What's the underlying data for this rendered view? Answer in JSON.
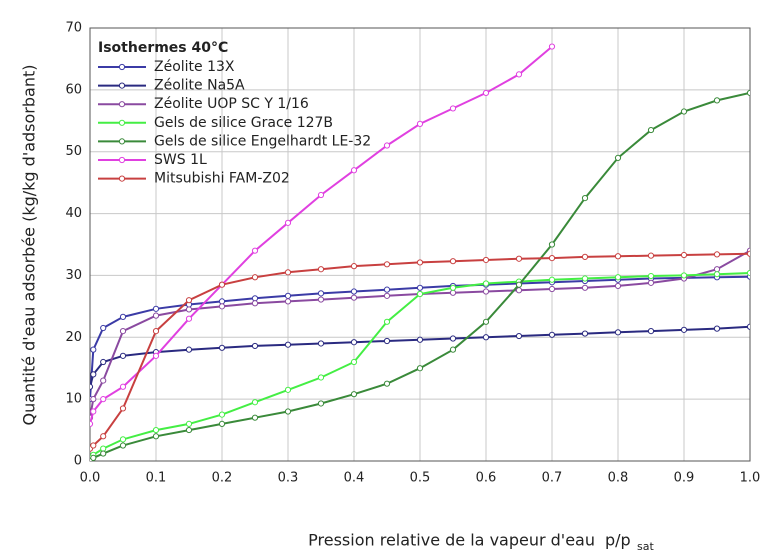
{
  "chart_data": {
    "type": "line",
    "legend_title": "Isothermes 40°C",
    "ylabel": "Quantité d'eau adsorbée (kg/kg d'adsorbant)",
    "xlabel": {
      "text": "Pression relative de la vapeur d'eau",
      "symbol": "p/p",
      "subscript": "sat"
    },
    "x": [
      0,
      0.005,
      0.02,
      0.05,
      0.1,
      0.15,
      0.2,
      0.25,
      0.3,
      0.35,
      0.4,
      0.45,
      0.5,
      0.55,
      0.6,
      0.65,
      0.7,
      0.75,
      0.8,
      0.85,
      0.9,
      0.95,
      1.0
    ],
    "xlim": [
      0,
      1
    ],
    "ylim": [
      0,
      70
    ],
    "xticks": [
      {
        "value": 0,
        "label": "0.0"
      },
      0.1,
      0.2,
      0.3,
      0.4,
      0.5,
      0.6,
      0.7,
      0.8,
      0.9,
      {
        "value": 1,
        "label": "1.0"
      }
    ],
    "yticks": [
      0,
      10,
      20,
      30,
      40,
      50,
      60,
      70
    ],
    "grid": true,
    "legend": "upper left",
    "series": [
      {
        "name": "Zéolite 13X",
        "color": "#3b3ba6",
        "values": [
          10,
          18,
          21.5,
          23.3,
          24.6,
          25.3,
          25.8,
          26.3,
          26.7,
          27.1,
          27.4,
          27.7,
          28,
          28.3,
          28.5,
          28.7,
          28.9,
          29.1,
          29.3,
          29.5,
          29.6,
          29.7,
          29.8
        ]
      },
      {
        "name": "Zéolite Na5A",
        "color": "#2a2a80",
        "values": [
          12,
          14,
          16,
          17,
          17.6,
          18,
          18.3,
          18.6,
          18.8,
          19,
          19.2,
          19.4,
          19.6,
          19.8,
          20,
          20.2,
          20.4,
          20.6,
          20.8,
          21,
          21.2,
          21.4,
          21.7
        ]
      },
      {
        "name": "Zéolite UOP SC Y 1/16",
        "color": "#8a4aa0",
        "values": [
          7,
          10,
          13,
          21,
          23.5,
          24.5,
          25,
          25.5,
          25.8,
          26.1,
          26.4,
          26.7,
          27,
          27.2,
          27.4,
          27.6,
          27.8,
          28,
          28.3,
          28.8,
          29.5,
          31,
          34
        ]
      },
      {
        "name": "Gels de silice Grace 127B",
        "color": "#44ee44",
        "values": [
          0.5,
          1,
          2,
          3.5,
          5,
          6,
          7.5,
          9.5,
          11.5,
          13.5,
          16,
          22.5,
          27,
          28,
          28.7,
          29,
          29.3,
          29.5,
          29.7,
          29.9,
          30,
          30.2,
          30.4
        ]
      },
      {
        "name": "Gels de silice Engelhardt LE-32",
        "color": "#3a8a3a",
        "values": [
          0,
          0.5,
          1.2,
          2.5,
          4,
          5,
          6,
          7,
          8,
          9.3,
          10.8,
          12.5,
          15,
          18,
          22.5,
          28.5,
          35,
          42.5,
          49,
          53.5,
          56.5,
          58.3,
          59.5
        ]
      },
      {
        "name": "SWS 1L",
        "color": "#e040e0",
        "values": [
          6,
          8,
          10,
          12,
          17,
          23,
          28.5,
          34,
          38.5,
          43,
          47,
          51,
          54.5,
          57,
          59.5,
          62.5,
          67,
          null,
          null,
          null,
          null,
          null,
          null
        ]
      },
      {
        "name": "Mitsubishi FAM-Z02",
        "color": "#c84040",
        "values": [
          2,
          2.5,
          4,
          8.5,
          21,
          26,
          28.5,
          29.7,
          30.5,
          31,
          31.5,
          31.8,
          32.1,
          32.3,
          32.5,
          32.7,
          32.8,
          33,
          33.1,
          33.2,
          33.3,
          33.4,
          33.5
        ]
      }
    ]
  }
}
